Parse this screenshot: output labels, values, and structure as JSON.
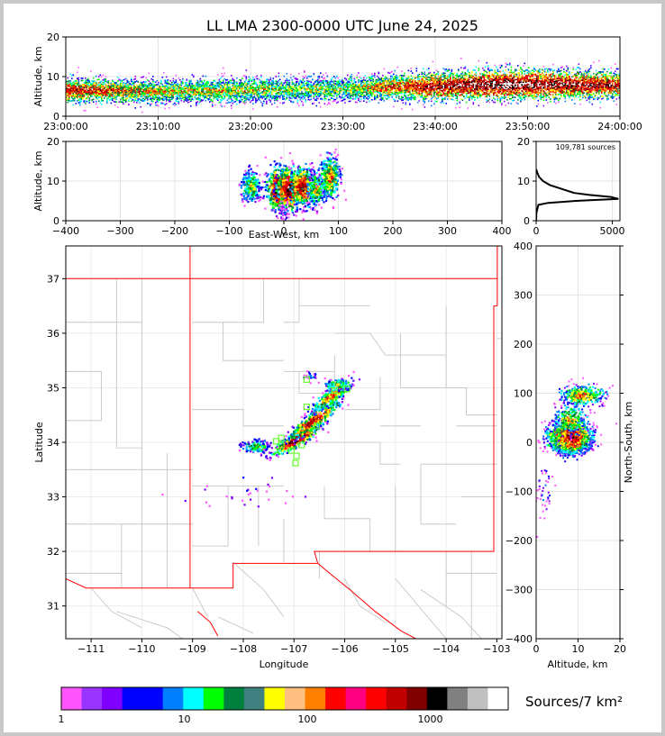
{
  "chart_data": {
    "title": "LL LMA 2300-0000 UTC June 24, 2025",
    "panels": {
      "time_height": {
        "type": "heatmap",
        "ylabel": "Altitude, km",
        "ylim": [
          0,
          20
        ],
        "yticks": [
          0,
          10,
          20
        ],
        "xticks": [
          "23:00:00",
          "23:10:00",
          "23:20:00",
          "23:30:00",
          "23:40:00",
          "23:50:00",
          "24:00:00"
        ],
        "xlim_minutes": [
          0,
          60
        ],
        "activity_profile": [
          {
            "t": 0,
            "center": 6.5,
            "spread": 2.8,
            "density": 0.8
          },
          {
            "t": 10,
            "center": 6.2,
            "spread": 2.5,
            "density": 0.6
          },
          {
            "t": 20,
            "center": 6.5,
            "spread": 2.8,
            "density": 0.55
          },
          {
            "t": 30,
            "center": 6.8,
            "spread": 2.6,
            "density": 0.5
          },
          {
            "t": 40,
            "center": 7.5,
            "spread": 3.2,
            "density": 0.9
          },
          {
            "t": 48,
            "center": 8.0,
            "spread": 3.5,
            "density": 1.0
          },
          {
            "t": 60,
            "center": 7.8,
            "spread": 3.0,
            "density": 0.85
          }
        ]
      },
      "ew_height": {
        "type": "heatmap",
        "xlabel": "East-West, km",
        "ylabel": "Altitude, km",
        "xlim": [
          -400,
          400
        ],
        "ylim": [
          0,
          20
        ],
        "xticks": [
          -400,
          -300,
          -200,
          -100,
          0,
          100,
          200,
          300,
          400
        ],
        "yticks": [
          0,
          10,
          20
        ]
      },
      "histogram": {
        "type": "line",
        "annotation": "109,781 sources",
        "xlim": [
          0,
          5500
        ],
        "ylim": [
          0,
          20
        ],
        "xticks": [
          0,
          5000
        ],
        "yticks": [
          0,
          10,
          20
        ],
        "profile": [
          {
            "alt": 0,
            "count": 0
          },
          {
            "alt": 2,
            "count": 20
          },
          {
            "alt": 4,
            "count": 150
          },
          {
            "alt": 4.5,
            "count": 800
          },
          {
            "alt": 5,
            "count": 2600
          },
          {
            "alt": 5.5,
            "count": 5400
          },
          {
            "alt": 6,
            "count": 4900
          },
          {
            "alt": 6.5,
            "count": 3500
          },
          {
            "alt": 7,
            "count": 2500
          },
          {
            "alt": 8,
            "count": 1700
          },
          {
            "alt": 9,
            "count": 900
          },
          {
            "alt": 10,
            "count": 450
          },
          {
            "alt": 11,
            "count": 200
          },
          {
            "alt": 12,
            "count": 80
          },
          {
            "alt": 13,
            "count": 0
          }
        ]
      },
      "plan_view": {
        "type": "heatmap",
        "xlabel": "Longitude",
        "ylabel": "Latitude",
        "xlim": [
          -111.5,
          -102.9
        ],
        "ylim": [
          30.4,
          37.6
        ],
        "xticks": [
          -111,
          -110,
          -109,
          -108,
          -107,
          -106,
          -105,
          -104,
          -103
        ],
        "yticks": [
          31,
          32,
          33,
          34,
          35,
          36,
          37
        ],
        "state_border_color": "#ff0000",
        "county_border_color": "#c0c0c0",
        "station_color": "#66ff33",
        "stations": [
          {
            "lon": -106.75,
            "lat": 35.15
          },
          {
            "lon": -106.2,
            "lat": 34.95
          },
          {
            "lon": -105.95,
            "lat": 34.98
          },
          {
            "lon": -106.75,
            "lat": 34.65
          },
          {
            "lon": -106.55,
            "lat": 34.3
          },
          {
            "lon": -107.35,
            "lat": 34.02
          },
          {
            "lon": -107.25,
            "lat": 34.08
          },
          {
            "lon": -106.85,
            "lat": 33.95
          },
          {
            "lon": -107.05,
            "lat": 33.85
          },
          {
            "lon": -106.95,
            "lat": 33.75
          },
          {
            "lon": -106.97,
            "lat": 33.62
          },
          {
            "lon": -107.25,
            "lat": 33.95
          }
        ]
      },
      "ns_height": {
        "type": "heatmap",
        "xlabel": "Altitude, km",
        "ylabel": "North-South, km",
        "xlim": [
          0,
          20
        ],
        "ylim": [
          -400,
          400
        ],
        "xticks": [
          0,
          10,
          20
        ],
        "yticks": [
          -400,
          -300,
          -200,
          -100,
          0,
          100,
          200,
          300,
          400
        ]
      }
    },
    "colorbar": {
      "label": "Sources/7 km²",
      "tick_labels": [
        "1",
        "10",
        "100",
        "1000"
      ],
      "colors": [
        "#ff55ff",
        "#9933ff",
        "#7f00ff",
        "#0000ff",
        "#0000ff",
        "#0080ff",
        "#00ffff",
        "#00ff00",
        "#00803f",
        "#408080",
        "#ffff00",
        "#ffbf80",
        "#ff8000",
        "#ff0000",
        "#ff0080",
        "#ff0000",
        "#c00000",
        "#800000",
        "#000000",
        "#808080",
        "#c0c0c0",
        "#ffffff"
      ]
    }
  }
}
